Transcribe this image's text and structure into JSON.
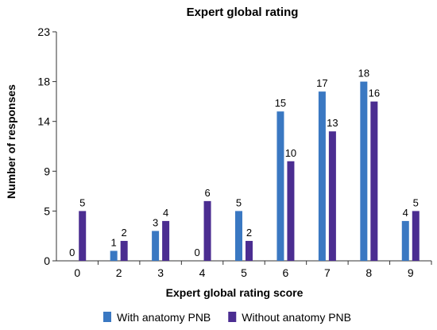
{
  "chart_data": {
    "type": "bar",
    "title": "Expert global rating",
    "xlabel": "Expert global rating score",
    "ylabel": "Number of responses",
    "categories": [
      "0",
      "2",
      "3",
      "4",
      "5",
      "6",
      "7",
      "8",
      "9"
    ],
    "y_ticks": [
      "0",
      "5",
      "9",
      "14",
      "18",
      "23"
    ],
    "ylim": [
      0,
      23
    ],
    "grid": false,
    "legend_position": "bottom",
    "series": [
      {
        "name": "With anatomy PNB",
        "color": "#3a78c2",
        "values": [
          0,
          1,
          3,
          0,
          5,
          15,
          17,
          18,
          4
        ]
      },
      {
        "name": "Without anatomy PNB",
        "color": "#4b2d91",
        "values": [
          5,
          2,
          4,
          6,
          2,
          10,
          13,
          16,
          5
        ]
      }
    ]
  }
}
